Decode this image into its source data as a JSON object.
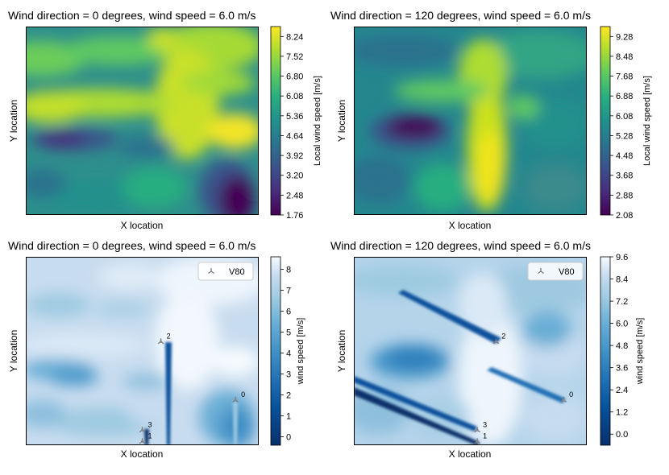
{
  "chart_data": [
    {
      "type": "heatmap",
      "title": "Wind direction = 0 degrees, wind speed = 6.0 m/s",
      "xlabel": "X location",
      "ylabel": "Y location",
      "colorbar_label": "Local wind speed [m/s]",
      "colormap": "viridis",
      "range": [
        1.76,
        8.6
      ],
      "colorbar_ticks": [
        "1.76",
        "2.48",
        "3.20",
        "3.92",
        "4.64",
        "5.36",
        "6.08",
        "6.80",
        "7.52",
        "8.24"
      ]
    },
    {
      "type": "heatmap",
      "title": "Wind direction = 120 degrees, wind speed = 6.0 m/s",
      "xlabel": "X location",
      "ylabel": "Y location",
      "colorbar_label": "Local wind speed [m/s]",
      "colormap": "viridis",
      "range": [
        2.08,
        9.68
      ],
      "colorbar_ticks": [
        "2.08",
        "2.88",
        "3.68",
        "4.48",
        "5.28",
        "6.08",
        "6.88",
        "7.68",
        "8.48",
        "9.28"
      ]
    },
    {
      "type": "heatmap",
      "title": "Wind direction = 0 degrees, wind speed = 6.0 m/s",
      "xlabel": "X location",
      "ylabel": "Y location",
      "colorbar_label": "wind speed [m/s]",
      "colormap": "Blues_r",
      "range": [
        -0.4,
        8.6
      ],
      "colorbar_ticks": [
        "0",
        "1",
        "2",
        "3",
        "4",
        "5",
        "6",
        "7",
        "8"
      ],
      "legend": {
        "entries": [
          "V80"
        ],
        "placement": "top-right"
      },
      "turbines": [
        {
          "id": "0",
          "x": 0.9,
          "y": 0.24
        },
        {
          "id": "1",
          "x": 0.5,
          "y": 0.02
        },
        {
          "id": "2",
          "x": 0.58,
          "y": 0.55
        },
        {
          "id": "3",
          "x": 0.5,
          "y": 0.08
        }
      ]
    },
    {
      "type": "heatmap",
      "title": "Wind direction = 120 degrees, wind speed = 6.0 m/s",
      "xlabel": "X location",
      "ylabel": "Y location",
      "colorbar_label": "wind speed [m/s]",
      "colormap": "Blues_r",
      "range": [
        -0.6,
        9.6
      ],
      "colorbar_ticks": [
        "0.0",
        "1.2",
        "2.4",
        "3.6",
        "4.8",
        "6.0",
        "7.2",
        "8.4",
        "9.6"
      ],
      "legend": {
        "entries": [
          "V80"
        ],
        "placement": "top-right"
      },
      "turbines": [
        {
          "id": "0",
          "x": 0.9,
          "y": 0.24
        },
        {
          "id": "1",
          "x": 0.53,
          "y": 0.02
        },
        {
          "id": "2",
          "x": 0.61,
          "y": 0.55
        },
        {
          "id": "3",
          "x": 0.53,
          "y": 0.08
        }
      ]
    }
  ]
}
